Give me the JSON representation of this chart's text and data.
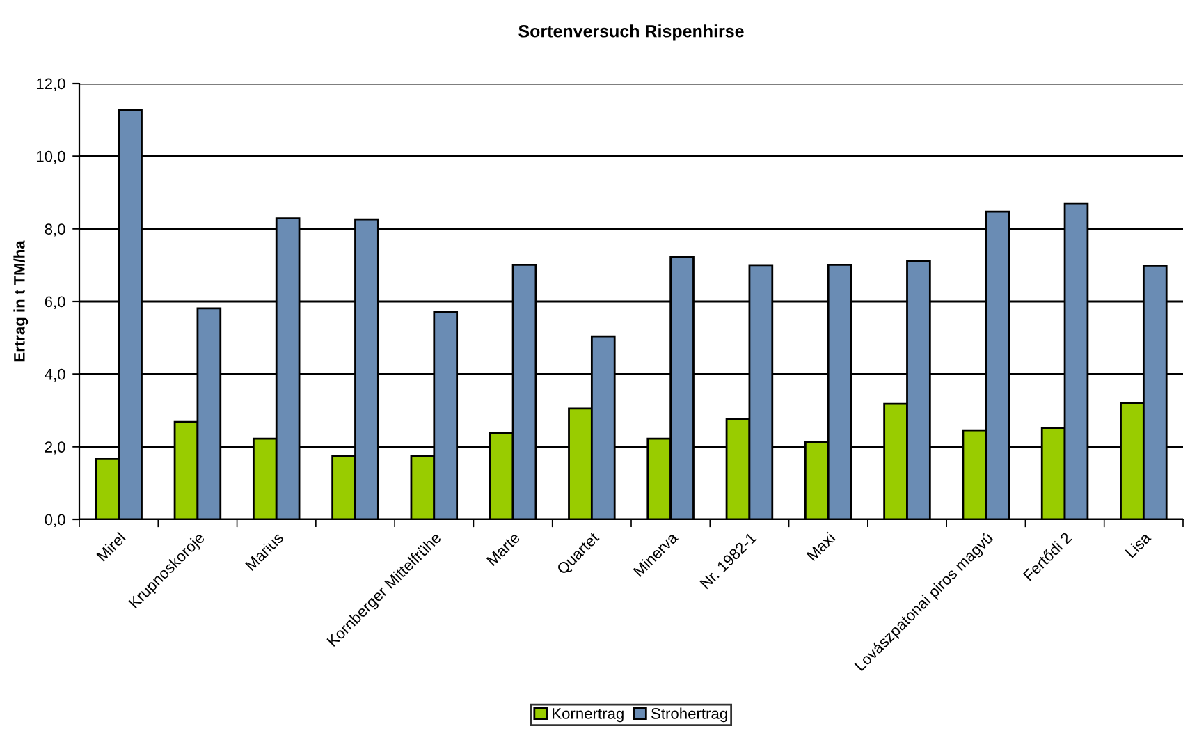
{
  "chart_data": {
    "type": "bar",
    "title": "Sortenversuch Rispenhirse",
    "ylabel": "Ertrag in t TM/ha",
    "categories": [
      "Mirel",
      "Krupnoskoroje",
      "Marius",
      null,
      "Kornberger Mittelfrühe",
      "Marte",
      "Quartet",
      "Minerva",
      "Nr. 1982-1",
      "Maxi",
      null,
      "Lovászpatonai piros magvú",
      "Fertődi 2",
      "Lisa"
    ],
    "series": [
      {
        "name": "Kornertrag",
        "color": "#99cc00",
        "values": [
          1.66,
          2.68,
          2.22,
          1.75,
          1.75,
          2.38,
          3.05,
          2.22,
          2.77,
          2.13,
          3.18,
          2.45,
          2.52,
          3.21
        ]
      },
      {
        "name": "Strohertrag",
        "color": "#6a8cb4",
        "values": [
          11.28,
          5.81,
          8.29,
          8.26,
          5.72,
          7.01,
          5.04,
          7.23,
          7.0,
          7.01,
          7.11,
          8.47,
          8.7,
          6.99
        ]
      }
    ],
    "ylim": [
      0,
      12
    ],
    "yticks": [
      {
        "value": 0,
        "label": "0,0"
      },
      {
        "value": 2,
        "label": "2,0"
      },
      {
        "value": 4,
        "label": "4,0"
      },
      {
        "value": 6,
        "label": "6,0"
      },
      {
        "value": 8,
        "label": "8,0"
      },
      {
        "value": 10,
        "label": "10,0"
      },
      {
        "value": 12,
        "label": "12,0"
      }
    ],
    "grid": "y",
    "legend": "bottom"
  }
}
